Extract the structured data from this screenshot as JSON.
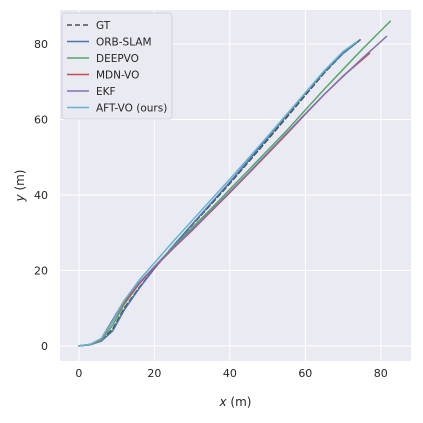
{
  "chart_data": {
    "type": "line",
    "title": "",
    "xlabel_var": "x",
    "xlabel_unit": " (m)",
    "ylabel_var": "y",
    "ylabel_unit": " (m)",
    "xlim": [
      -5,
      88
    ],
    "ylim": [
      -4,
      89
    ],
    "xticks": [
      0,
      20,
      40,
      60,
      80
    ],
    "yticks": [
      0,
      20,
      40,
      60,
      80
    ],
    "grid": true,
    "legend_position": "top-left",
    "background": "#eaeaf2",
    "series": [
      {
        "name": "GT",
        "color": "#4c4c4c",
        "dash": true,
        "x": [
          0,
          3,
          6,
          9,
          12,
          16,
          20,
          25,
          30,
          35,
          40,
          45,
          50,
          55,
          60,
          65,
          70,
          75
        ],
        "y": [
          0,
          0.3,
          1.5,
          4.5,
          10,
          15.5,
          20.5,
          26.5,
          32,
          37.5,
          43,
          48.8,
          54.6,
          60.5,
          66.4,
          72.3,
          77.5,
          81.5
        ]
      },
      {
        "name": "ORB-SLAM",
        "color": "#4c72b0",
        "dash": false,
        "x": [
          0,
          3,
          6,
          9,
          12,
          16,
          20,
          25,
          30,
          35,
          40,
          45,
          50,
          55,
          60,
          65,
          70,
          74.5
        ],
        "y": [
          0,
          0.3,
          1.3,
          4,
          9.5,
          15.3,
          20.5,
          26.5,
          32.2,
          37.8,
          43.4,
          49.2,
          55.1,
          61,
          66.9,
          72.6,
          77.5,
          81
        ]
      },
      {
        "name": "DEEPVO",
        "color": "#55a868",
        "dash": false,
        "x": [
          0,
          3,
          6,
          9,
          12,
          16,
          20,
          25,
          30,
          35,
          40,
          45,
          50,
          55,
          60,
          65,
          70,
          75,
          82.5
        ],
        "y": [
          0,
          0.3,
          1.6,
          5.5,
          11,
          16.5,
          21,
          26.3,
          31.3,
          36.3,
          41.5,
          46.6,
          51.8,
          57,
          62.5,
          68,
          73.3,
          78.5,
          86
        ]
      },
      {
        "name": "MDN-VO",
        "color": "#c44e52",
        "dash": false,
        "x": [
          0,
          3,
          6,
          9,
          12,
          16,
          20,
          25,
          30,
          35,
          40,
          45,
          50,
          55,
          60,
          65,
          70,
          77
        ],
        "y": [
          0,
          0.4,
          1.8,
          6.5,
          11.5,
          16.5,
          20.8,
          25.8,
          30.6,
          35.6,
          40.6,
          45.7,
          50.9,
          56.1,
          61.4,
          66.6,
          71.5,
          77.5
        ]
      },
      {
        "name": "EKF",
        "color": "#8172b3",
        "dash": false,
        "x": [
          0,
          3,
          6,
          9,
          12,
          16,
          20,
          25,
          30,
          35,
          40,
          45,
          50,
          55,
          60,
          65,
          70,
          75,
          81.5
        ],
        "y": [
          0,
          0.4,
          2,
          7,
          12,
          16.8,
          21,
          26,
          30.8,
          35.8,
          40.8,
          45.9,
          51.1,
          56.3,
          61.5,
          66.6,
          71.4,
          76.1,
          82
        ]
      },
      {
        "name": "AFT-VO (ours)",
        "color": "#64b5cd",
        "dash": false,
        "x": [
          0,
          3,
          6,
          9,
          12,
          16,
          20,
          25,
          30,
          35,
          40,
          45,
          50,
          55,
          60,
          65,
          70,
          73.5
        ],
        "y": [
          0,
          0.4,
          2,
          6.5,
          12,
          17.5,
          22,
          27.7,
          33.2,
          38.7,
          44.2,
          49.8,
          55.5,
          61.3,
          67.1,
          72.9,
          78,
          80.5
        ]
      }
    ]
  }
}
